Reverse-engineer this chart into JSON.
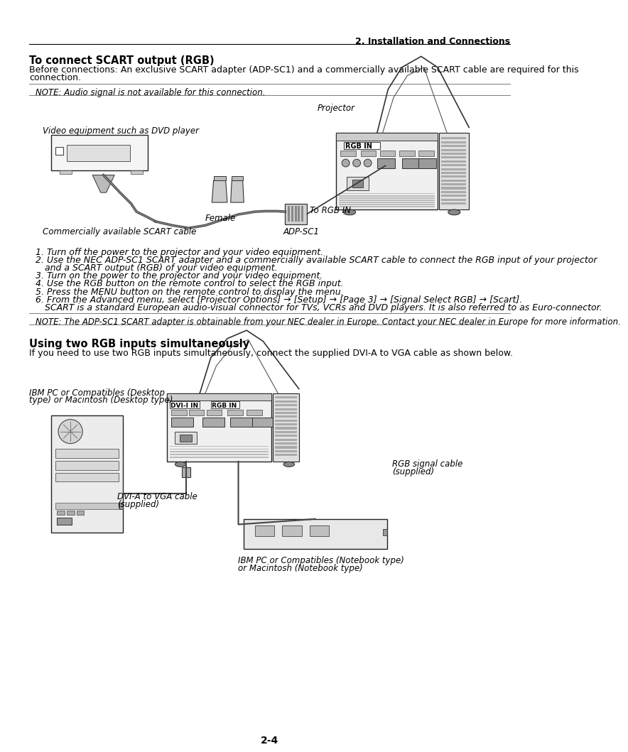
{
  "page_header_right": "2. Installation and Connections",
  "section1_title": "To connect SCART output (RGB)",
  "body1_line1": "Before connections: An exclusive SCART adapter (ADP-SC1) and a commercially available SCART cable are required for this",
  "body1_line2": "connection.",
  "note1": "NOTE: Audio signal is not available for this connection.",
  "label_projector": "Projector",
  "label_rgb_in_top": "RGB IN",
  "label_video_eq": "Video equipment such as DVD player",
  "label_scart_cable": "Commercially available SCART cable",
  "label_female": "Female",
  "label_to_rgb_in": "To RGB IN",
  "label_adp_sc1": "ADP-SC1",
  "step1": "1. Turn off the power to the projector and your video equipment.",
  "step2a": "2. Use the NEC ADP-SC1 SCART adapter and a commercially available SCART cable to connect the RGB input of your projector",
  "step2b": "   and a SCART output (RGB) of your video equipment.",
  "step3": "3. Turn on the power to the projector and your video equipment.",
  "step4": "4. Use the RGB button on the remote control to select the RGB input.",
  "step5": "5. Press the MENU button on the remote control to display the menu.",
  "step6a": "6. From the Advanced menu, select [Projector Options] → [Setup] → [Page 3] → [Signal Select RGB] → [Scart].",
  "step6b": "   SCART is a standard European audio-visual connector for TVs, VCRs and DVD players. It is also referred to as Euro-connector.",
  "note2": "NOTE: The ADP-SC1 SCART adapter is obtainable from your NEC dealer in Europe. Contact your NEC dealer in Europe for more information.",
  "section2_title": "Using two RGB inputs simultaneously",
  "section2_body": "If you need to use two RGB inputs simultaneously, connect the supplied DVI-A to VGA cable as shown below.",
  "label_dvi_i_in": "DVI-I IN",
  "label_rgb_in_bottom": "RGB IN",
  "label_ibm_desktop": "IBM PC or Compatibles (Desktop\ntype) or Macintosh (Desktop type)",
  "label_dvi_vga_line1": "DVI-A to VGA cable",
  "label_dvi_vga_line2": "(supplied)",
  "label_rgb_signal_line1": "RGB signal cable",
  "label_rgb_signal_line2": "(supplied)",
  "label_ibm_notebook_line1": "IBM PC or Compatibles (Notebook type)",
  "label_ibm_notebook_line2": "or Macintosh (Notebook type)",
  "page_number": "2-4",
  "bg_color": "#ffffff"
}
